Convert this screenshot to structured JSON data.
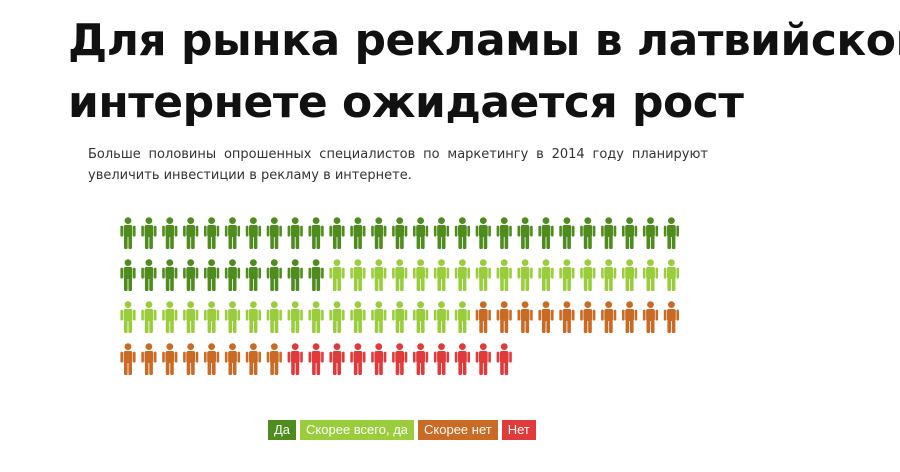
{
  "title_line1": "Для рынка рекламы в латвийском",
  "title_line2": "интернете ожидается рост",
  "subtitle": "Больше половины опрошенных специалистов по маркетингу в 2014 году планируют увеличить инвестиции в рекламу в интернете.",
  "chart_data": {
    "type": "pictogram",
    "categories": [
      "Да",
      "Скорее всего, да",
      "Скорее нет",
      "Нет"
    ],
    "values": [
      37,
      34,
      18,
      11
    ],
    "colors": [
      "#4e8c1e",
      "#9acd3c",
      "#c96a25",
      "#e03a3a"
    ],
    "legend_position": "bottom",
    "grid": false
  },
  "legend": [
    {
      "label": "Да",
      "color": "#4e8c1e"
    },
    {
      "label": "Скорее всего, да",
      "color": "#9acd3c"
    },
    {
      "label": "Скорее нет",
      "color": "#c96a25"
    },
    {
      "label": "Нет",
      "color": "#e03a3a"
    }
  ]
}
